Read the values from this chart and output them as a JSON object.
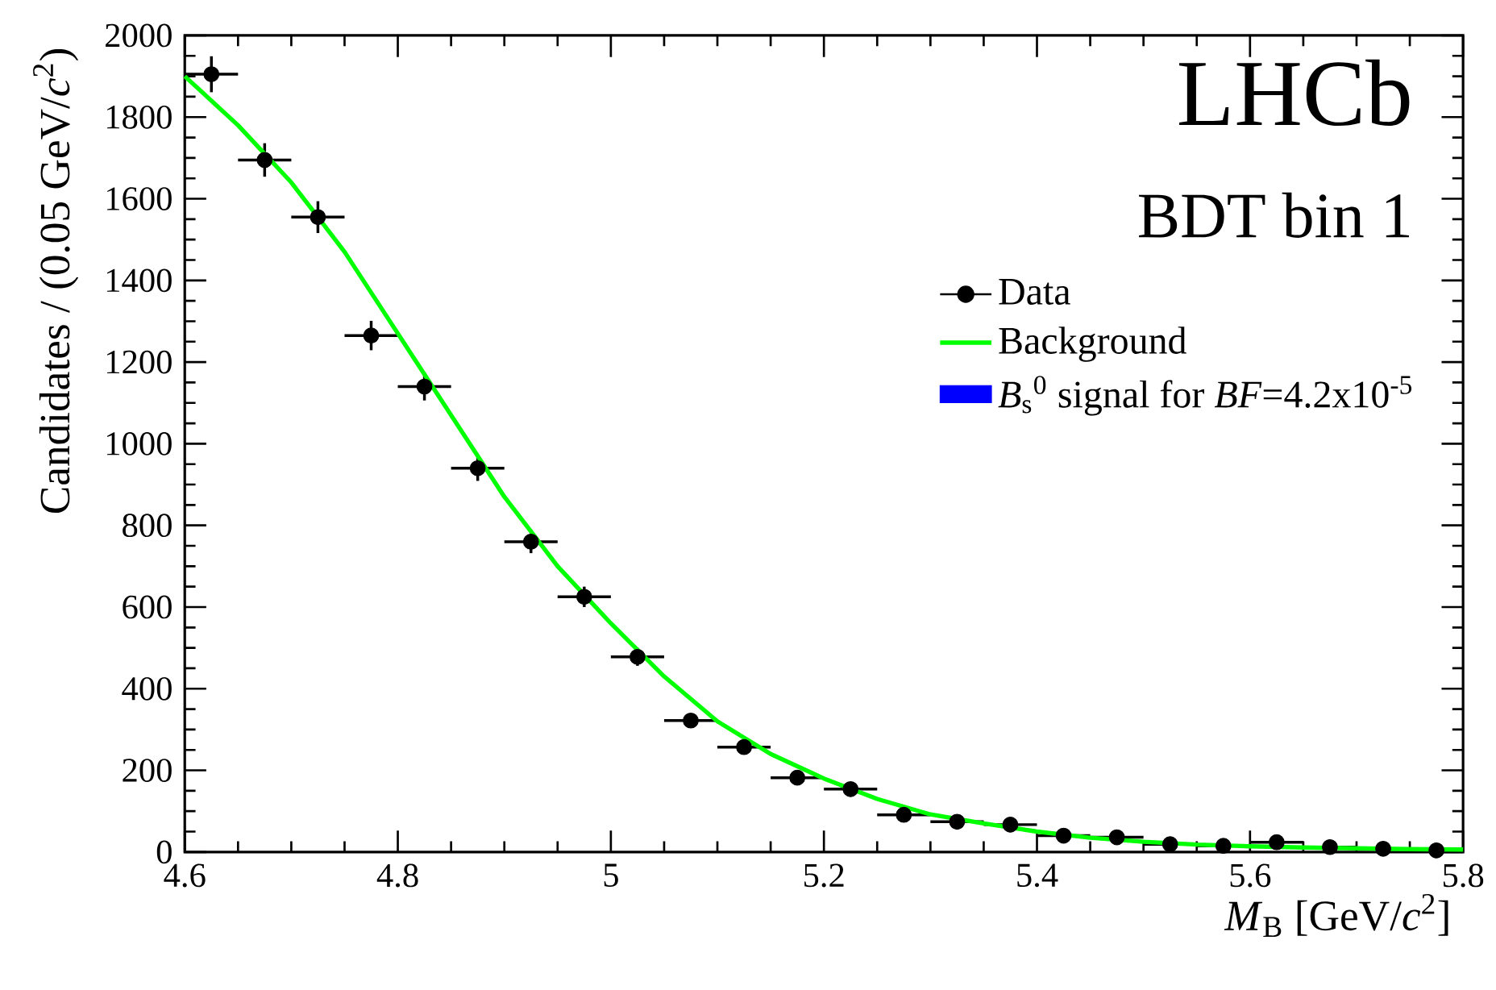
{
  "chart_data": {
    "type": "scatter",
    "xlabel": "*M*$_{B}$ [GeV/*c*$^{2}$]",
    "ylabel": "Candidates / (0.05 GeV/*c*$^{2}$)",
    "annotations": [
      "LHCb",
      "BDT bin 1"
    ],
    "xlim": [
      4.6,
      5.8
    ],
    "xticks": [
      4.6,
      4.8,
      5,
      5.2,
      5.4,
      5.6,
      5.8
    ],
    "ylim": [
      0,
      2000
    ],
    "yticks": [
      0,
      200,
      400,
      600,
      800,
      1000,
      1200,
      1400,
      1600,
      1800,
      2000
    ],
    "legend": "right",
    "series": [
      {
        "name": "Data",
        "color": "#000000",
        "marker": "circle",
        "x": [
          4.625,
          4.675,
          4.725,
          4.775,
          4.825,
          4.875,
          4.925,
          4.975,
          5.025,
          5.075,
          5.125,
          5.175,
          5.225,
          5.275,
          5.325,
          5.375,
          5.425,
          5.475,
          5.525,
          5.575,
          5.625,
          5.675,
          5.725,
          5.775
        ],
        "values": [
          1905,
          1695,
          1555,
          1265,
          1140,
          940,
          760,
          625,
          478,
          322,
          257,
          182,
          154,
          91,
          74,
          67,
          40,
          36,
          19,
          15,
          24,
          12,
          8,
          4
        ],
        "errors": [
          44,
          41,
          39,
          36,
          34,
          31,
          28,
          25,
          22,
          null,
          null,
          null,
          null,
          null,
          null,
          null,
          null,
          null,
          null,
          null,
          null,
          null,
          null,
          null
        ],
        "xerrors": [
          0.025,
          0.025,
          0.025,
          0.025,
          0.025,
          0.025,
          0.025,
          0.025,
          0.025,
          0.025,
          0.025,
          0.025,
          0.025,
          0.025,
          0.025,
          0.025,
          0.025,
          0.025,
          0.025,
          0.025,
          0.025,
          0.025,
          0.025,
          0.025
        ]
      },
      {
        "name": "Background",
        "type": "line",
        "color": "#00ff00",
        "x": [
          4.6,
          4.65,
          4.7,
          4.75,
          4.8,
          4.85,
          4.9,
          4.95,
          5.0,
          5.05,
          5.1,
          5.15,
          5.2,
          5.25,
          5.3,
          5.35,
          5.4,
          5.45,
          5.5,
          5.55,
          5.6,
          5.65,
          5.7,
          5.75,
          5.8
        ],
        "values": [
          1900,
          1780,
          1640,
          1470,
          1270,
          1070,
          870,
          700,
          560,
          430,
          320,
          240,
          180,
          130,
          92,
          70,
          50,
          35,
          25,
          18,
          14,
          11,
          9,
          7,
          6
        ]
      },
      {
        "name": "*B*$_{s}$$^{0}$ signal for *BF*=4.2x10$^{-5}$",
        "type": "bar",
        "color": "#0000ff"
      }
    ]
  }
}
